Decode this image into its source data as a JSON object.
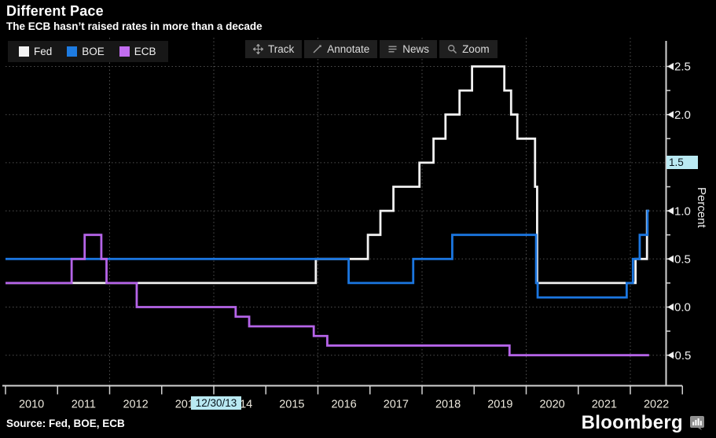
{
  "header": {
    "title": "Different Pace",
    "subtitle": "The ECB hasn’t raised rates in more than a decade"
  },
  "legend": {
    "items": [
      {
        "label": "Fed",
        "color": "#f2f2f2"
      },
      {
        "label": "BOE",
        "color": "#1e7ce2"
      },
      {
        "label": "ECB",
        "color": "#c26df0"
      }
    ]
  },
  "toolbar": {
    "buttons": [
      {
        "label": "Track"
      },
      {
        "label": "Annotate"
      },
      {
        "label": "News"
      },
      {
        "label": "Zoom"
      }
    ]
  },
  "tracker": {
    "date_label": "12/30/13",
    "value_label": "1.5",
    "badge_bg": "#b9e9f2"
  },
  "source": {
    "text": "Source: Fed, BOE, ECB"
  },
  "branding": {
    "logo_text": "Bloomberg"
  },
  "colors": {
    "background": "#000000",
    "fed_line": "#f2f2f2",
    "boe_line": "#1b76e0",
    "ecb_line": "#b564e8",
    "grid": "#4f4f4f",
    "axis": "#d2d2d2",
    "x_tick_label": "#ece8dd",
    "y_tick_label": "#f2f2f2",
    "badge": "#b9e9f2"
  },
  "chart_data": {
    "type": "line",
    "step": true,
    "title": "Different Pace",
    "subtitle": "The ECB hasn't raised rates in more than a decade",
    "ylabel": "Percent",
    "xlabel": "",
    "x_range": [
      2010,
      2023
    ],
    "y_range": [
      -0.82,
      2.67
    ],
    "grid": true,
    "legend_position": "top-left",
    "x_tick_years": [
      "2010",
      "2011",
      "2012",
      "2013",
      "2014",
      "2015",
      "2016",
      "2017",
      "2018",
      "2019",
      "2020",
      "2021",
      "2022"
    ],
    "x_gridline_years": [
      2012,
      2014,
      2016,
      2018,
      2020,
      2022
    ],
    "y_ticks": [
      {
        "value": 2.5,
        "label": "2.5"
      },
      {
        "value": 2.0,
        "label": "2.0"
      },
      {
        "value": 1.5,
        "label": "1.5"
      },
      {
        "value": 1.0,
        "label": "1.0"
      },
      {
        "value": 0.5,
        "label": "0.5"
      },
      {
        "value": 0.0,
        "label": "0.0"
      },
      {
        "value": -0.5,
        "label": "-0.5"
      }
    ],
    "y_minor_ticks": [
      2.25,
      1.75,
      1.25,
      0.75,
      0.25,
      -0.25
    ],
    "end_x": 2022.36,
    "series": [
      {
        "name": "Fed",
        "color": "#f2f2f2",
        "points": [
          [
            2010.0,
            0.25
          ],
          [
            2015.96,
            0.5
          ],
          [
            2016.96,
            0.75
          ],
          [
            2017.2,
            1.0
          ],
          [
            2017.45,
            1.25
          ],
          [
            2017.95,
            1.5
          ],
          [
            2018.22,
            1.75
          ],
          [
            2018.45,
            2.0
          ],
          [
            2018.72,
            2.25
          ],
          [
            2018.96,
            2.5
          ],
          [
            2019.58,
            2.25
          ],
          [
            2019.71,
            2.0
          ],
          [
            2019.83,
            1.75
          ],
          [
            2020.17,
            1.25
          ],
          [
            2020.21,
            0.25
          ],
          [
            2022.1,
            0.5
          ],
          [
            2022.32,
            1.0
          ]
        ]
      },
      {
        "name": "BOE",
        "color": "#1b76e0",
        "points": [
          [
            2010.0,
            0.5
          ],
          [
            2016.59,
            0.25
          ],
          [
            2017.83,
            0.5
          ],
          [
            2018.58,
            0.75
          ],
          [
            2020.19,
            0.25
          ],
          [
            2020.22,
            0.1
          ],
          [
            2021.93,
            0.25
          ],
          [
            2022.05,
            0.5
          ],
          [
            2022.18,
            0.75
          ],
          [
            2022.33,
            1.0
          ]
        ]
      },
      {
        "name": "ECB",
        "color": "#b564e8",
        "points": [
          [
            2010.0,
            0.25
          ],
          [
            2011.27,
            0.5
          ],
          [
            2011.52,
            0.75
          ],
          [
            2011.84,
            0.5
          ],
          [
            2011.94,
            0.25
          ],
          [
            2012.52,
            0.0
          ],
          [
            2014.42,
            -0.1
          ],
          [
            2014.68,
            -0.2
          ],
          [
            2015.92,
            -0.3
          ],
          [
            2016.18,
            -0.4
          ],
          [
            2019.68,
            -0.5
          ]
        ]
      }
    ]
  }
}
